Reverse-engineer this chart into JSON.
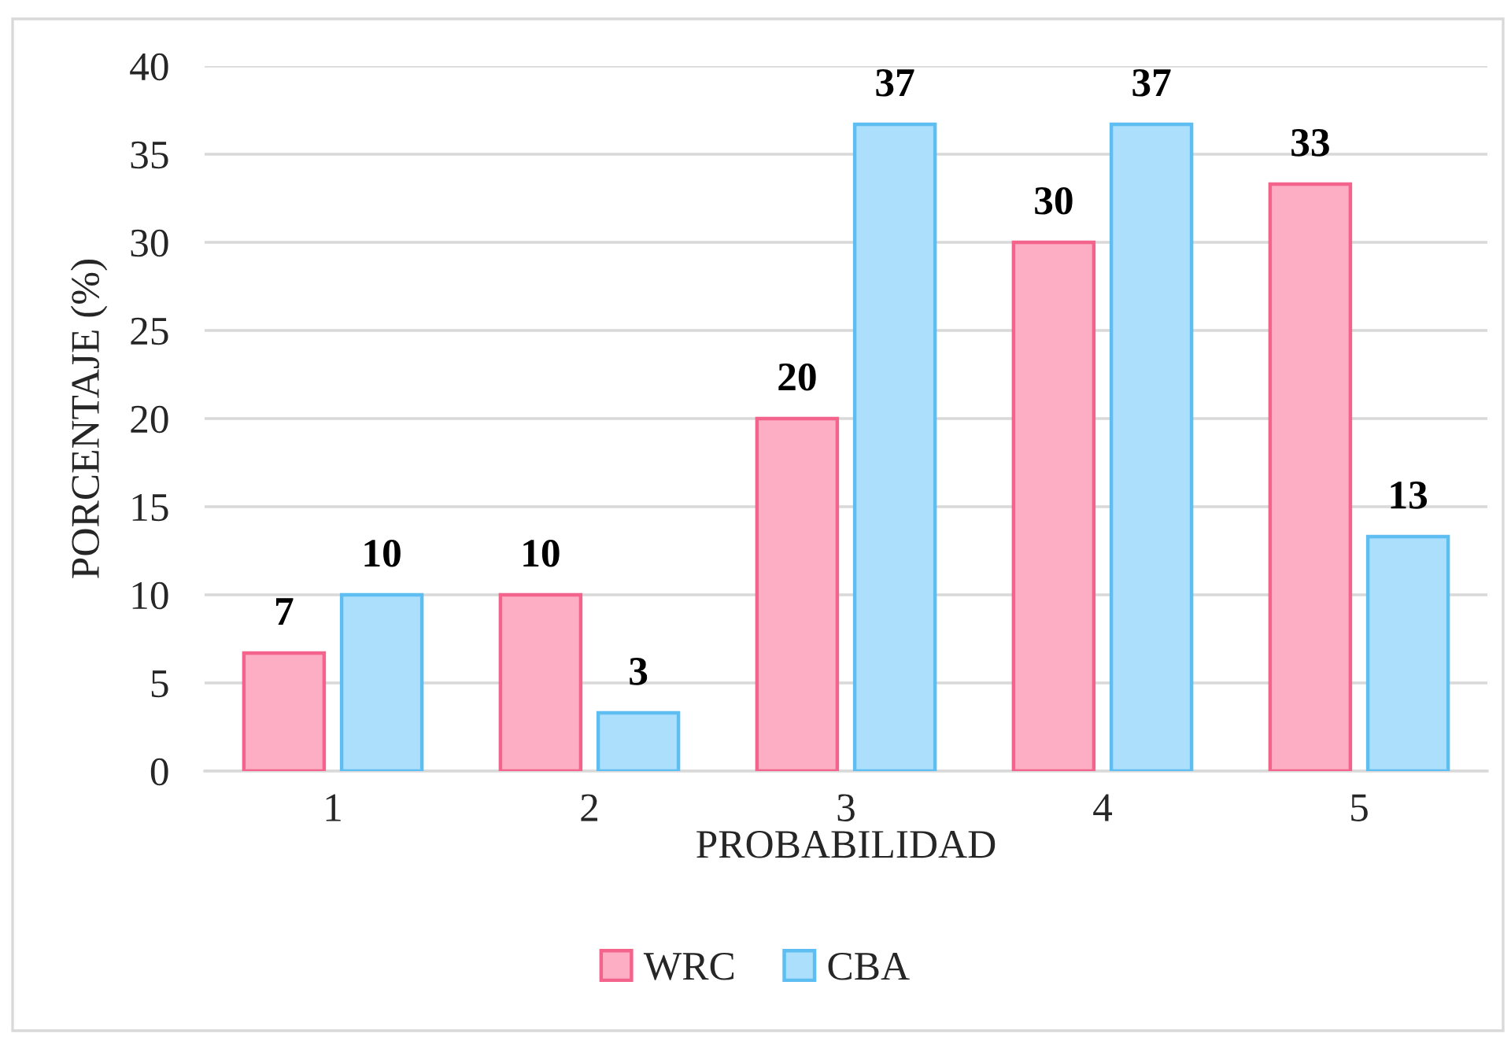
{
  "chart_data": {
    "type": "bar",
    "categories": [
      "1",
      "2",
      "3",
      "4",
      "5"
    ],
    "series": [
      {
        "name": "WRC",
        "color": "#fdaec4",
        "values": [
          6.7,
          10,
          20,
          30,
          33.3
        ],
        "value_labels": [
          "7",
          "10",
          "20",
          "30",
          "33"
        ]
      },
      {
        "name": "CBA",
        "color": "#abdffb",
        "values": [
          10,
          3.3,
          36.7,
          36.7,
          13.3
        ],
        "value_labels": [
          "10",
          "3",
          "37",
          "37",
          "13"
        ]
      }
    ],
    "xlabel": "PROBABILIDAD",
    "ylabel": "PORCENTAJE (%)",
    "ylim": [
      0,
      40
    ],
    "yticks": [
      0,
      5,
      10,
      15,
      20,
      25,
      30,
      35,
      40
    ],
    "grid": "y",
    "legend": "bottom"
  }
}
